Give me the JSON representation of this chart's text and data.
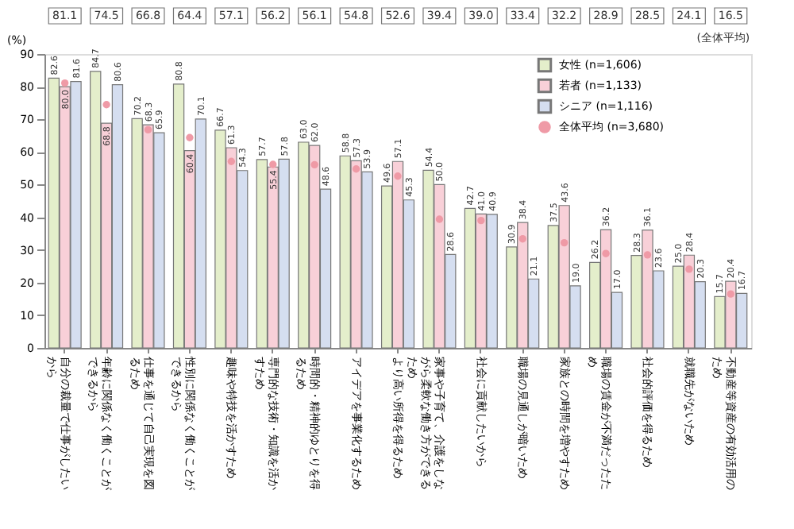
{
  "chart_data": {
    "type": "bar",
    "ylabel": "(%)",
    "categories": [
      "自分の裁量で仕事がしたいから",
      "年齢に関係なく働くことができるから",
      "仕事を通じて自己実現を図るため",
      "性別に関係なく働くことができるから",
      "趣味や特技を活かすため",
      "専門的な技術・知識を活かすため",
      "時間的・精神的ゆとりを得るため",
      "アイデアを事業化するため",
      "より高い所得を得るため",
      "家事や子育て、介護をしながら柔軟な働き方ができるため",
      "社会に貢献したいから",
      "職場の見通しが暗いため",
      "家族との時間を増やすため",
      "職場の賃金が不満だったため",
      "社会的評価を得るため",
      "就職先がないため",
      "不動産等資産の有効活用のため"
    ],
    "series": [
      {
        "name": "女性 (n=1,606)",
        "color": "#e4eecb",
        "values": [
          82.6,
          84.7,
          70.2,
          80.8,
          66.7,
          57.7,
          63.0,
          58.8,
          49.6,
          54.4,
          42.7,
          30.9,
          37.5,
          26.2,
          28.3,
          25.0,
          15.7
        ],
        "value_labels": [
          "82.6",
          "84.7",
          "70.2",
          "80.8",
          "66.7",
          "57.7",
          "63.0",
          "58.8",
          "49.6",
          "54.4",
          "42.7",
          "30.9",
          "37.5",
          "26.2",
          "28.3",
          "25.0",
          "15.7"
        ]
      },
      {
        "name": "若者 (n=1,133)",
        "color": "#f8d0d8",
        "values": [
          80.0,
          68.8,
          68.3,
          60.4,
          61.3,
          55.4,
          62.0,
          57.3,
          57.1,
          50.0,
          41.0,
          38.4,
          43.6,
          36.2,
          36.1,
          28.4,
          20.4
        ],
        "value_labels": [
          "80.0",
          "68.8",
          "68.3",
          "60.4",
          "61.3",
          "55.4",
          "62.0",
          "57.3",
          "57.1",
          "50.0",
          "41.0",
          "38.4",
          "43.6",
          "36.2",
          "36.1",
          "28.4",
          "20.4"
        ]
      },
      {
        "name": "シニア (n=1,116)",
        "color": "#d5def0",
        "values": [
          81.6,
          80.6,
          65.9,
          70.1,
          54.3,
          57.8,
          48.6,
          53.9,
          45.3,
          28.6,
          40.9,
          21.1,
          19.0,
          17.0,
          23.6,
          20.3,
          16.7
        ],
        "value_labels": [
          "81.6",
          "80.6",
          "65.9",
          "70.1",
          "54.3",
          "57.8",
          "48.6",
          "53.9",
          "45.3",
          "28.6",
          "40.9",
          "21.1",
          "19.0",
          "17.0",
          "23.6",
          "20.3",
          "16.7"
        ]
      },
      {
        "name": "全体平均 (n=3,680)",
        "type": "scatter",
        "color": "#ef9aa6",
        "marker": "circle",
        "values": [
          81.1,
          74.5,
          66.8,
          64.4,
          57.1,
          56.2,
          56.1,
          54.8,
          52.6,
          39.4,
          39.0,
          33.4,
          32.2,
          28.9,
          28.5,
          24.1,
          16.5
        ],
        "value_labels": [
          "81.1",
          "74.5",
          "66.8",
          "64.4",
          "57.1",
          "56.2",
          "56.1",
          "54.8",
          "52.6",
          "39.4",
          "39.0",
          "33.4",
          "32.2",
          "28.9",
          "28.5",
          "24.1",
          "16.5"
        ]
      }
    ],
    "annotations": [
      "(全体平均)"
    ],
    "ylim": [
      0,
      90
    ],
    "yticks": [
      0,
      10,
      20,
      30,
      40,
      50,
      60,
      70,
      80,
      90
    ],
    "data_labels": true,
    "grid": false,
    "legend": "top right"
  }
}
